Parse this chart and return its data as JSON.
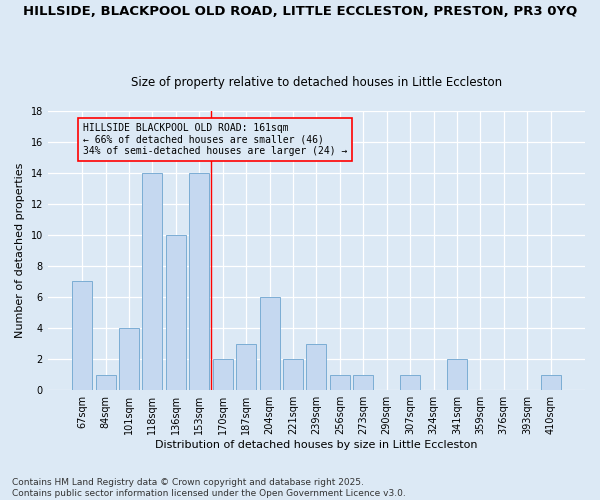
{
  "title1": "HILLSIDE, BLACKPOOL OLD ROAD, LITTLE ECCLESTON, PRESTON, PR3 0YQ",
  "title2": "Size of property relative to detached houses in Little Eccleston",
  "xlabel": "Distribution of detached houses by size in Little Eccleston",
  "ylabel": "Number of detached properties",
  "categories": [
    "67sqm",
    "84sqm",
    "101sqm",
    "118sqm",
    "136sqm",
    "153sqm",
    "170sqm",
    "187sqm",
    "204sqm",
    "221sqm",
    "239sqm",
    "256sqm",
    "273sqm",
    "290sqm",
    "307sqm",
    "324sqm",
    "341sqm",
    "359sqm",
    "376sqm",
    "393sqm",
    "410sqm"
  ],
  "values": [
    7,
    1,
    4,
    14,
    10,
    14,
    2,
    3,
    6,
    2,
    3,
    1,
    1,
    0,
    1,
    0,
    2,
    0,
    0,
    0,
    1
  ],
  "bar_color": "#c5d8f0",
  "bar_edge_color": "#7badd4",
  "background_color": "#dce9f5",
  "ylim": [
    0,
    18
  ],
  "yticks": [
    0,
    2,
    4,
    6,
    8,
    10,
    12,
    14,
    16,
    18
  ],
  "red_line_x": 5.5,
  "annotation_line1": "HILLSIDE BLACKPOOL OLD ROAD: 161sqm",
  "annotation_line2": "← 66% of detached houses are smaller (46)",
  "annotation_line3": "34% of semi-detached houses are larger (24) →",
  "footnote": "Contains HM Land Registry data © Crown copyright and database right 2025.\nContains public sector information licensed under the Open Government Licence v3.0.",
  "title_fontsize": 9.5,
  "subtitle_fontsize": 8.5,
  "annotation_fontsize": 7,
  "axis_label_fontsize": 8,
  "tick_fontsize": 7,
  "footnote_fontsize": 6.5
}
